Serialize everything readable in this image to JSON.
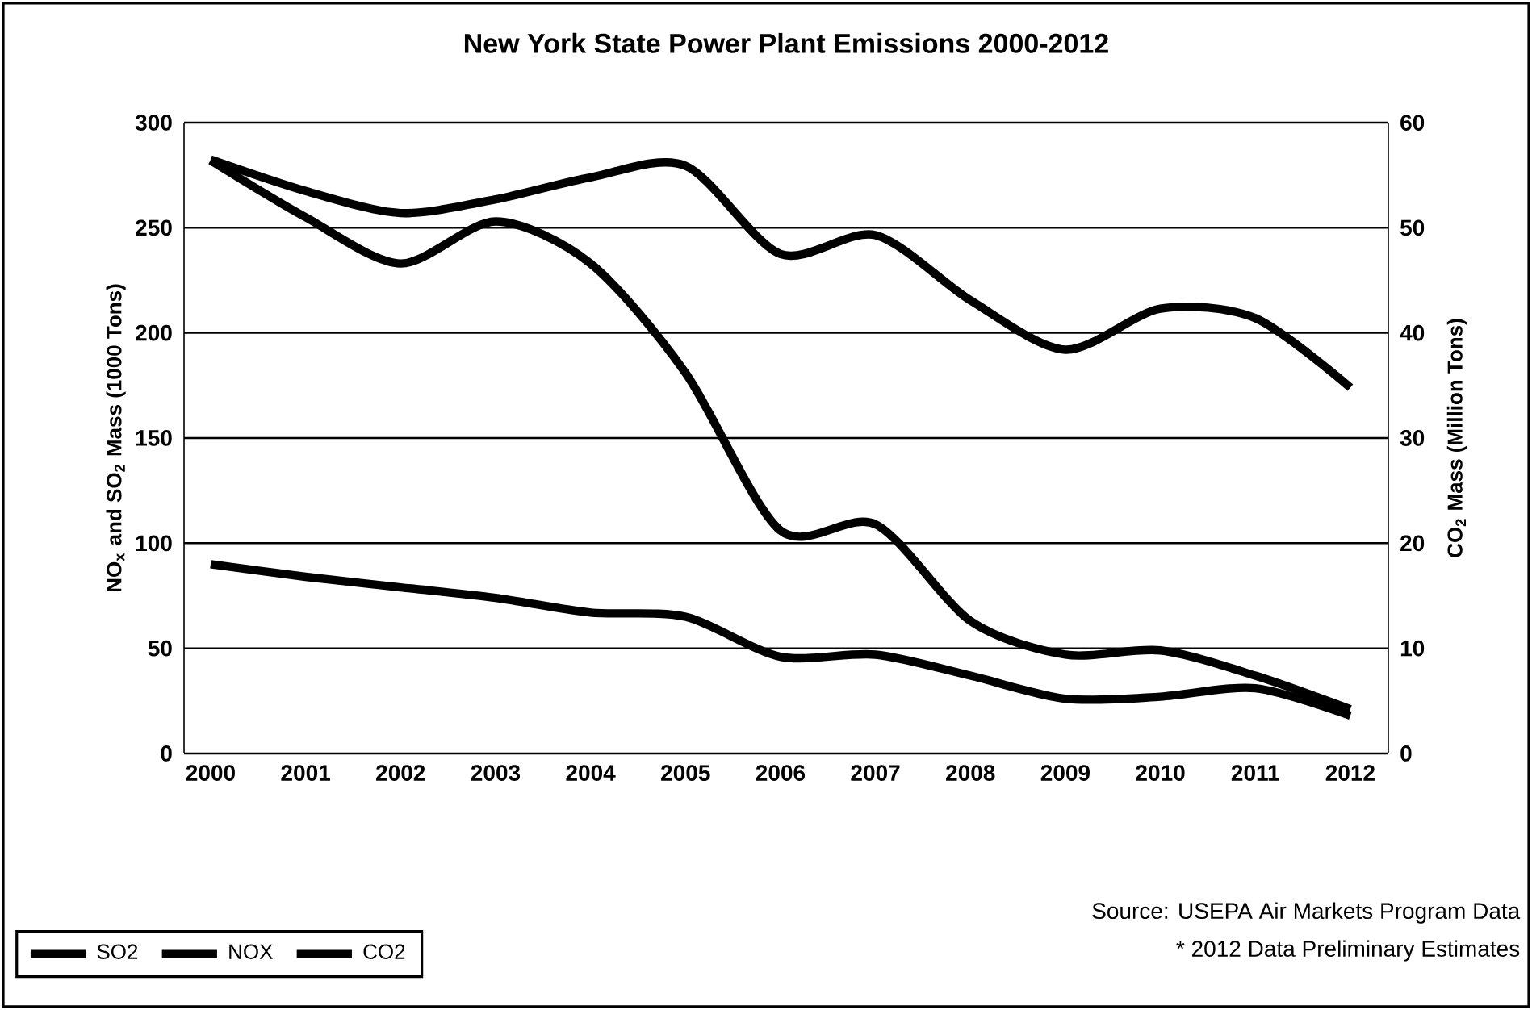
{
  "chart_data": {
    "type": "line",
    "title": "New York State Power Plant Emissions 2000-2012",
    "ylabel": "NO$_{x}$ and SO$_{2}$ Mass (1000 Tons)",
    "y2label": "CO$_{2}$ Mass (Million Tons)",
    "categories": [
      "2000",
      "2001",
      "2002",
      "2003",
      "2004",
      "2005",
      "2006",
      "2007",
      "2008",
      "2009",
      "2010",
      "2011",
      "2012"
    ],
    "series": [
      {
        "name": "SO2",
        "color": "#000000",
        "values": [
          282,
          255,
          233,
          253,
          233,
          181,
          106,
          109,
          63,
          47,
          49,
          37,
          21
        ]
      },
      {
        "name": "NOX",
        "color": "#000000",
        "values": [
          90,
          84,
          79,
          74,
          67,
          65,
          46,
          47,
          37,
          26,
          27,
          31,
          18
        ]
      },
      {
        "name": "CO2",
        "color": "#000000",
        "axis": "y2",
        "values": [
          56.5,
          53.5,
          51.4,
          52.7,
          54.8,
          55.9,
          47.5,
          49.3,
          43.1,
          38.4,
          42.3,
          41.4,
          34.8
        ]
      }
    ],
    "ylim": [
      0,
      300
    ],
    "yticks": [
      0,
      50,
      100,
      150,
      200,
      250,
      300
    ],
    "y2lim": [
      0,
      60
    ],
    "y2ticks": [
      0,
      10,
      20,
      30,
      40,
      50,
      60
    ],
    "grid": "y",
    "legend": "bottom left",
    "marker": "none",
    "line_style": "solid",
    "annotations": [
      "Source: USEPA Air Markets Program Data",
      "* 2012 Data Preliminary Estimates"
    ]
  }
}
